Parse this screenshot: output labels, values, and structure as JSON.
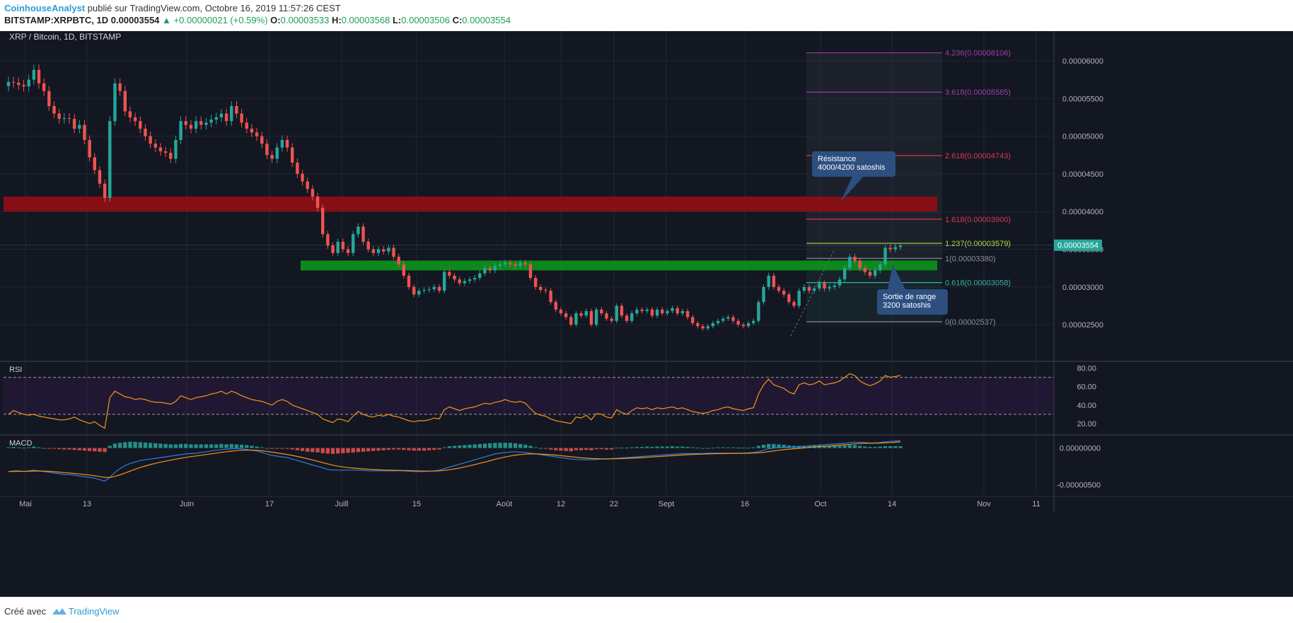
{
  "header": {
    "author": "CoinhouseAnalyst",
    "published": "publié sur TradingView.com, Octobre 16, 2019 11:57:26 CEST",
    "symbol": "BITSTAMP:XRPBTC, 1D",
    "last": "0.00003554",
    "change": "+0.00000021 (+0.59%)",
    "o_label": "O:",
    "o": "0.00003533",
    "h_label": "H:",
    "h": "0.00003568",
    "l_label": "L:",
    "l": "0.00003506",
    "c_label": "C:",
    "c": "0.00003554"
  },
  "footer": {
    "created": "Créé avec",
    "brand": "TradingView"
  },
  "colors": {
    "background": "#131722",
    "up": "#26a69a",
    "down": "#ef5350",
    "resistance_zone": "#8b0f14",
    "support_zone": "#0c8f1a",
    "rsi_line": "#f7931a",
    "macd_line": "#2f7fe0",
    "signal_line": "#f7931a",
    "fib_purple": "#9c3fa6",
    "fib_red": "#d33c47",
    "fib_lime": "#b9d636",
    "fib_gray": "#8a8f9a",
    "fib_teal": "#33b3a4",
    "callout": "#2c4f7f"
  },
  "chart_data": {
    "type": "candlestick",
    "title": "XRP / Bitcoin, 1D, BITSTAMP",
    "xlabel": "",
    "ylabel": "",
    "ylim": [
      2e-05,
      6.4e-05
    ],
    "x_ticks": [
      "Mai",
      "13",
      "Juin",
      "17",
      "Juill",
      "15",
      "Août",
      "12",
      "22",
      "Sept",
      "16",
      "Oct",
      "14",
      "Nov",
      "11"
    ],
    "y_ticks": [
      "0.00006000",
      "0.00005500",
      "0.00005000",
      "0.00004500",
      "0.00004000",
      "0.00003500",
      "0.00003000",
      "0.00002500"
    ],
    "last_price_label": "0.00003554",
    "grid": true,
    "zones": [
      {
        "name": "resistance",
        "low": 4e-05,
        "high": 4.2e-05
      },
      {
        "name": "support",
        "low": 3.22e-05,
        "high": 3.35e-05
      }
    ],
    "fibonacci": [
      {
        "label": "4.236(0.00006106)",
        "value": 6.106e-05,
        "color": "#9c3fa6"
      },
      {
        "label": "3.618(0.00005585)",
        "value": 5.585e-05,
        "color": "#9c3fa6"
      },
      {
        "label": "2.618(0.00004743)",
        "value": 4.743e-05,
        "color": "#d33c47"
      },
      {
        "label": "1.618(0.00003900)",
        "value": 3.9e-05,
        "color": "#d33c47"
      },
      {
        "label": "1.237(0.00003579)",
        "value": 3.579e-05,
        "color": "#b9d636"
      },
      {
        "label": "1(0.00003380)",
        "value": 3.38e-05,
        "color": "#8a8f9a"
      },
      {
        "label": "0.618(0.00003058)",
        "value": 3.058e-05,
        "color": "#33b3a4"
      },
      {
        "label": "0(0.00002537)",
        "value": 2.537e-05,
        "color": "#8a8f9a"
      }
    ],
    "annotations": [
      {
        "lines": [
          "Résistance",
          "4000/4200 satoshis"
        ]
      },
      {
        "lines": [
          "Sortie de range",
          "3200 satoshis"
        ]
      }
    ],
    "closes": [
      5.72e-05,
      5.71e-05,
      5.68e-05,
      5.66e-05,
      5.75e-05,
      5.88e-05,
      5.7e-05,
      5.6e-05,
      5.4e-05,
      5.3e-05,
      5.23e-05,
      5.24e-05,
      5.23e-05,
      5.1e-05,
      5.15e-05,
      4.95e-05,
      4.72e-05,
      4.55e-05,
      4.37e-05,
      4.18e-05,
      5.2e-05,
      5.7e-05,
      5.6e-05,
      5.33e-05,
      5.25e-05,
      5.2e-05,
      5.1e-05,
      5e-05,
      4.9e-05,
      4.85e-05,
      4.8e-05,
      4.78e-05,
      4.7e-05,
      4.95e-05,
      5.2e-05,
      5.15e-05,
      5.1e-05,
      5.2e-05,
      5.15e-05,
      5.18e-05,
      5.22e-05,
      5.25e-05,
      5.3e-05,
      5.2e-05,
      5.4e-05,
      5.3e-05,
      5.18e-05,
      5.1e-05,
      5.05e-05,
      5e-05,
      4.9e-05,
      4.75e-05,
      4.7e-05,
      4.85e-05,
      4.95e-05,
      4.85e-05,
      4.65e-05,
      4.5e-05,
      4.4e-05,
      4.3e-05,
      4.2e-05,
      4.05e-05,
      3.7e-05,
      3.55e-05,
      3.45e-05,
      3.6e-05,
      3.5e-05,
      3.45e-05,
      3.7e-05,
      3.8e-05,
      3.6e-05,
      3.5e-05,
      3.45e-05,
      3.5e-05,
      3.47e-05,
      3.52e-05,
      3.4e-05,
      3.3e-05,
      3.15e-05,
      3e-05,
      2.9e-05,
      2.95e-05,
      2.96e-05,
      2.97e-05,
      3e-05,
      2.95e-05,
      3.2e-05,
      3.15e-05,
      3.1e-05,
      3.05e-05,
      3.08e-05,
      3.1e-05,
      3.12e-05,
      3.18e-05,
      3.25e-05,
      3.22e-05,
      3.28e-05,
      3.3e-05,
      3.32e-05,
      3.3e-05,
      3.28e-05,
      3.32e-05,
      3.3e-05,
      3.12e-05,
      3e-05,
      2.96e-05,
      2.95e-05,
      2.8e-05,
      2.7e-05,
      2.65e-05,
      2.6e-05,
      2.5e-05,
      2.65e-05,
      2.62e-05,
      2.68e-05,
      2.5e-05,
      2.7e-05,
      2.65e-05,
      2.58e-05,
      2.55e-05,
      2.75e-05,
      2.62e-05,
      2.55e-05,
      2.65e-05,
      2.7e-05,
      2.68e-05,
      2.7e-05,
      2.62e-05,
      2.7e-05,
      2.65e-05,
      2.68e-05,
      2.72e-05,
      2.65e-05,
      2.68e-05,
      2.6e-05,
      2.52e-05,
      2.48e-05,
      2.45e-05,
      2.48e-05,
      2.52e-05,
      2.55e-05,
      2.58e-05,
      2.6e-05,
      2.55e-05,
      2.5e-05,
      2.48e-05,
      2.52e-05,
      2.55e-05,
      2.8e-05,
      3e-05,
      3.15e-05,
      3e-05,
      2.95e-05,
      2.9e-05,
      2.8e-05,
      2.75e-05,
      2.95e-05,
      3e-05,
      2.95e-05,
      2.98e-05,
      3.05e-05,
      2.98e-05,
      3e-05,
      3.02e-05,
      3.1e-05,
      3.25e-05,
      3.4e-05,
      3.35e-05,
      3.25e-05,
      3.2e-05,
      3.15e-05,
      3.22e-05,
      3.3e-05,
      3.52e-05,
      3.5e-05,
      3.53e-05,
      3.55e-05
    ],
    "rsi": {
      "name": "RSI",
      "levels": [
        70,
        30
      ],
      "ylim": [
        10,
        85
      ],
      "y_ticks": [
        "80.00",
        "60.00",
        "40.00",
        "20.00"
      ],
      "values": [
        30,
        34,
        32,
        30,
        29,
        30,
        28,
        27,
        26,
        25,
        24,
        24,
        25,
        27,
        24,
        22,
        20,
        22,
        18,
        15,
        48,
        55,
        52,
        49,
        48,
        46,
        47,
        46,
        44,
        43,
        43,
        42,
        41,
        44,
        50,
        48,
        46,
        48,
        49,
        50,
        52,
        53,
        55,
        52,
        55,
        53,
        50,
        48,
        46,
        45,
        44,
        42,
        40,
        44,
        46,
        44,
        40,
        38,
        36,
        34,
        32,
        30,
        25,
        23,
        21,
        25,
        24,
        22,
        28,
        33,
        30,
        28,
        27,
        29,
        28,
        30,
        28,
        27,
        25,
        23,
        22,
        23,
        23,
        24,
        26,
        25,
        35,
        38,
        36,
        34,
        36,
        37,
        38,
        40,
        42,
        41,
        43,
        44,
        46,
        44,
        43,
        44,
        42,
        36,
        31,
        29,
        28,
        25,
        23,
        22,
        21,
        20,
        27,
        26,
        29,
        24,
        31,
        30,
        27,
        26,
        35,
        32,
        30,
        34,
        37,
        36,
        37,
        35,
        37,
        36,
        37,
        38,
        36,
        37,
        35,
        33,
        32,
        31,
        32,
        34,
        35,
        37,
        38,
        36,
        35,
        34,
        36,
        37,
        52,
        62,
        68,
        62,
        60,
        58,
        54,
        52,
        62,
        64,
        62,
        63,
        66,
        62,
        63,
        64,
        66,
        70,
        74,
        72,
        66,
        63,
        61,
        63,
        66,
        72,
        70,
        71,
        72
      ]
    },
    "macd": {
      "name": "MACD",
      "ylim": [
        -6.2e-06,
        1.5e-06
      ],
      "y_ticks": [
        "0.00000000",
        "-0.00000500"
      ],
      "histogram": [
        0.1,
        0.15,
        0.1,
        0.05,
        0.1,
        0.2,
        0.1,
        0.0,
        -0.05,
        -0.1,
        -0.15,
        -0.2,
        -0.2,
        -0.25,
        -0.3,
        -0.35,
        -0.4,
        -0.45,
        -0.5,
        -0.55,
        0.3,
        0.6,
        0.7,
        0.8,
        0.85,
        0.85,
        0.8,
        0.75,
        0.7,
        0.65,
        0.6,
        0.55,
        0.5,
        0.5,
        0.55,
        0.55,
        0.5,
        0.5,
        0.5,
        0.5,
        0.5,
        0.5,
        0.55,
        0.5,
        0.55,
        0.5,
        0.45,
        0.4,
        0.3,
        0.2,
        0.1,
        0.0,
        -0.1,
        -0.1,
        -0.05,
        -0.1,
        -0.2,
        -0.3,
        -0.4,
        -0.5,
        -0.55,
        -0.6,
        -0.7,
        -0.75,
        -0.8,
        -0.75,
        -0.7,
        -0.65,
        -0.6,
        -0.55,
        -0.5,
        -0.45,
        -0.4,
        -0.35,
        -0.3,
        -0.25,
        -0.2,
        -0.2,
        -0.25,
        -0.3,
        -0.35,
        -0.35,
        -0.35,
        -0.3,
        -0.25,
        -0.2,
        0.1,
        0.25,
        0.3,
        0.35,
        0.4,
        0.45,
        0.5,
        0.55,
        0.6,
        0.65,
        0.7,
        0.72,
        0.72,
        0.7,
        0.65,
        0.55,
        0.45,
        0.3,
        0.1,
        0.0,
        -0.1,
        -0.2,
        -0.3,
        -0.35,
        -0.4,
        -0.45,
        -0.3,
        -0.3,
        -0.25,
        -0.3,
        -0.15,
        -0.15,
        -0.2,
        -0.2,
        0.05,
        0.05,
        0.05,
        0.1,
        0.15,
        0.15,
        0.2,
        0.15,
        0.2,
        0.2,
        0.2,
        0.25,
        0.2,
        0.2,
        0.15,
        0.1,
        0.05,
        0.0,
        0.0,
        0.05,
        0.1,
        0.1,
        0.1,
        0.1,
        0.05,
        0.05,
        0.05,
        0.1,
        0.3,
        0.45,
        0.55,
        0.55,
        0.5,
        0.45,
        0.35,
        0.3,
        0.3,
        0.3,
        0.3,
        0.3,
        0.35,
        0.3,
        0.3,
        0.3,
        0.3,
        0.35,
        0.4,
        0.4,
        0.3,
        0.2,
        0.15,
        0.15,
        0.2,
        0.25,
        0.25,
        0.25,
        0.25
      ],
      "macd_line": [
        -3.2,
        -3.1,
        -3.1,
        -3.2,
        -3.1,
        -3.0,
        -3.1,
        -3.2,
        -3.3,
        -3.4,
        -3.5,
        -3.6,
        -3.6,
        -3.7,
        -3.8,
        -3.9,
        -4.0,
        -4.1,
        -4.3,
        -4.5,
        -4.0,
        -3.3,
        -2.8,
        -2.4,
        -2.1,
        -1.9,
        -1.7,
        -1.6,
        -1.5,
        -1.4,
        -1.3,
        -1.2,
        -1.1,
        -1.0,
        -0.9,
        -0.8,
        -0.75,
        -0.7,
        -0.6,
        -0.5,
        -0.4,
        -0.3,
        -0.2,
        -0.15,
        -0.1,
        -0.05,
        -0.1,
        -0.2,
        -0.3,
        -0.4,
        -0.6,
        -0.8,
        -1.0,
        -1.1,
        -1.2,
        -1.3,
        -1.5,
        -1.7,
        -1.9,
        -2.1,
        -2.3,
        -2.5,
        -2.7,
        -2.9,
        -3.0,
        -3.0,
        -3.0,
        -3.0,
        -3.0,
        -3.0,
        -3.05,
        -3.1,
        -3.1,
        -3.1,
        -3.1,
        -3.1,
        -3.1,
        -3.1,
        -3.1,
        -3.15,
        -3.2,
        -3.2,
        -3.2,
        -3.15,
        -3.1,
        -3.0,
        -2.8,
        -2.6,
        -2.4,
        -2.2,
        -2.0,
        -1.8,
        -1.6,
        -1.4,
        -1.2,
        -1.0,
        -0.8,
        -0.7,
        -0.6,
        -0.55,
        -0.5,
        -0.55,
        -0.6,
        -0.7,
        -0.8,
        -0.9,
        -1.0,
        -1.1,
        -1.2,
        -1.3,
        -1.4,
        -1.5,
        -1.55,
        -1.6,
        -1.6,
        -1.6,
        -1.55,
        -1.5,
        -1.5,
        -1.45,
        -1.4,
        -1.35,
        -1.3,
        -1.25,
        -1.2,
        -1.15,
        -1.1,
        -1.05,
        -1.0,
        -0.95,
        -0.9,
        -0.85,
        -0.8,
        -0.75,
        -0.75,
        -0.75,
        -0.75,
        -0.75,
        -0.7,
        -0.7,
        -0.7,
        -0.7,
        -0.7,
        -0.7,
        -0.7,
        -0.7,
        -0.65,
        -0.6,
        -0.5,
        -0.3,
        -0.1,
        0.0,
        0.05,
        0.1,
        0.1,
        0.15,
        0.2,
        0.25,
        0.3,
        0.35,
        0.4,
        0.45,
        0.5,
        0.55,
        0.6,
        0.65,
        0.75,
        0.8,
        0.8,
        0.75,
        0.7,
        0.7,
        0.75,
        0.85,
        0.9,
        0.95,
        1.0
      ]
    }
  }
}
